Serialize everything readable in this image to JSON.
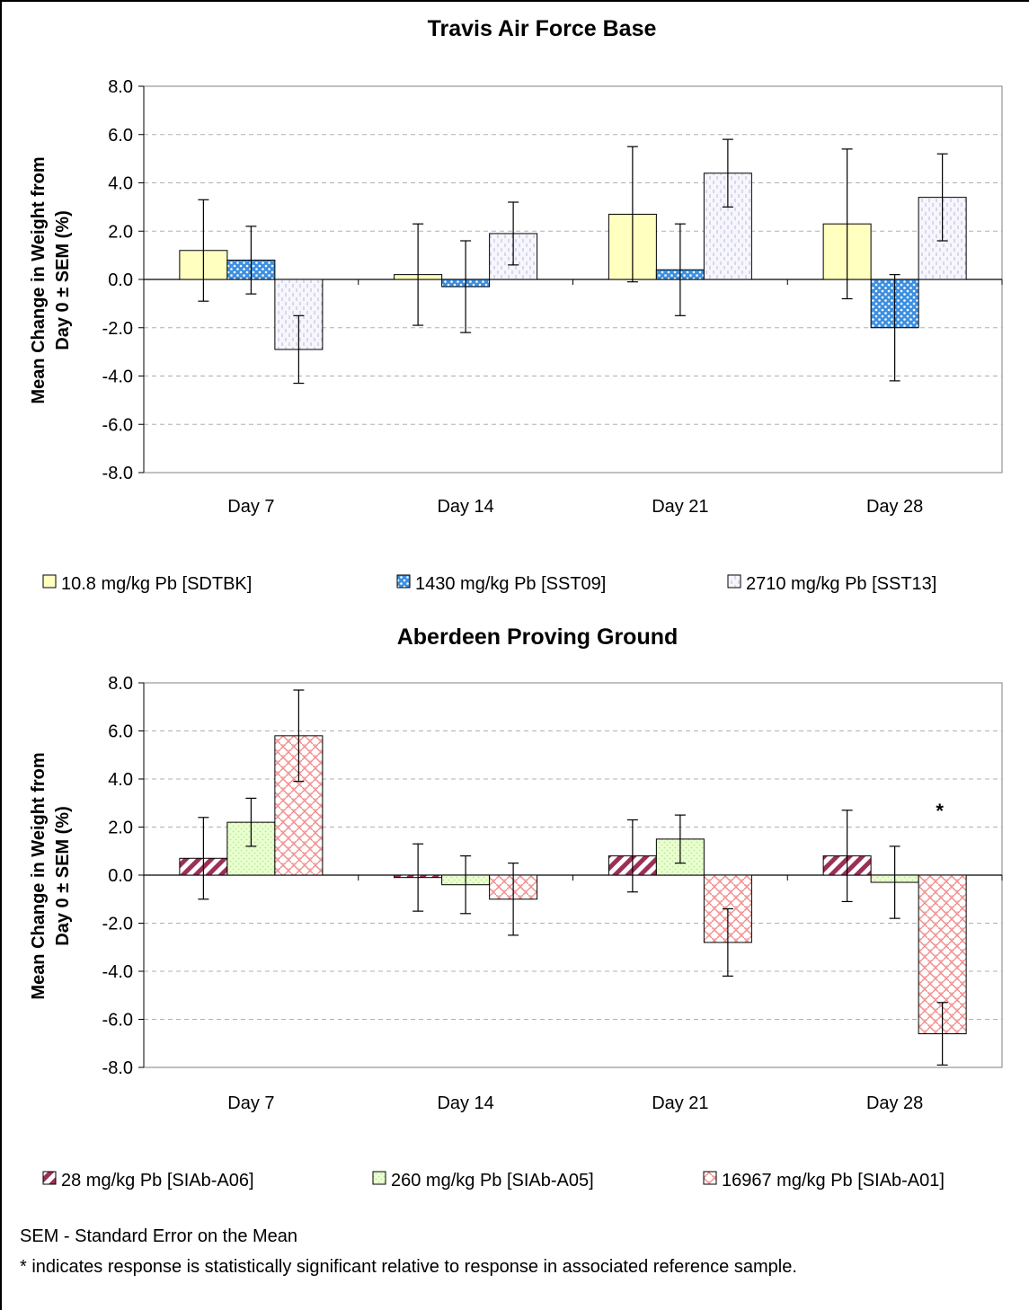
{
  "chart_data": [
    {
      "type": "bar",
      "title": "Travis Air Force Base",
      "ylabel_line1": "Mean Change in Weight from",
      "ylabel_line2": "Day 0 ± SEM (%)",
      "categories": [
        "Day 7",
        "Day 14",
        "Day 21",
        "Day 28"
      ],
      "ylim": [
        -8.0,
        8.0
      ],
      "yticks": [
        "8.0",
        "6.0",
        "4.0",
        "2.0",
        "0.0",
        "-2.0",
        "-4.0",
        "-6.0",
        "-8.0"
      ],
      "grid": true,
      "legend_position": "bottom",
      "series": [
        {
          "name": "10.8 mg/kg Pb [SDTBK]",
          "values": [
            1.2,
            0.2,
            2.7,
            2.3
          ],
          "errors": [
            2.1,
            2.1,
            2.8,
            3.1
          ],
          "color": "#ffffc0",
          "pattern": "solid"
        },
        {
          "name": "1430 mg/kg Pb [SST09]",
          "values": [
            0.8,
            -0.3,
            0.4,
            -2.0
          ],
          "errors": [
            1.4,
            1.9,
            1.9,
            2.2
          ],
          "color": "#3d8fe0",
          "pattern": "dots"
        },
        {
          "name": "2710 mg/kg Pb [SST13]",
          "values": [
            -2.9,
            1.9,
            4.4,
            3.4
          ],
          "errors": [
            1.4,
            1.3,
            1.4,
            1.8
          ],
          "color": "#ececf8",
          "pattern": "vdash"
        }
      ],
      "annotations": []
    },
    {
      "type": "bar",
      "title": "Aberdeen Proving Ground",
      "ylabel_line1": "Mean Change in Weight from",
      "ylabel_line2": "Day 0 ± SEM (%)",
      "categories": [
        "Day 7",
        "Day 14",
        "Day 21",
        "Day 28"
      ],
      "ylim": [
        -8.0,
        8.0
      ],
      "yticks": [
        "8.0",
        "6.0",
        "4.0",
        "2.0",
        "0.0",
        "-2.0",
        "-4.0",
        "-6.0",
        "-8.0"
      ],
      "grid": true,
      "legend_position": "bottom",
      "series": [
        {
          "name": "28 mg/kg Pb [SIAb-A06]",
          "values": [
            0.7,
            -0.1,
            0.8,
            0.8
          ],
          "errors": [
            1.7,
            1.4,
            1.5,
            1.9
          ],
          "color": "#9c2f57",
          "pattern": "diag"
        },
        {
          "name": "260 mg/kg Pb [SIAb-A05]",
          "values": [
            2.2,
            -0.4,
            1.5,
            -0.3
          ],
          "errors": [
            1.0,
            1.2,
            1.0,
            1.5
          ],
          "color": "#e6ffc8",
          "pattern": "dots-light"
        },
        {
          "name": "16967 mg/kg Pb [SIAb-A01]",
          "values": [
            5.8,
            -1.0,
            -2.8,
            -6.6
          ],
          "errors": [
            1.9,
            1.5,
            1.4,
            1.3
          ],
          "color": "#f4a0a0",
          "pattern": "weave"
        }
      ],
      "annotations": [
        {
          "category": "Day 28",
          "series": 2,
          "text": "*"
        }
      ]
    }
  ],
  "footnotes": {
    "sem": "SEM - Standard Error on the Mean",
    "significance": "* indicates response is statistically significant relative to response in associated reference sample."
  }
}
